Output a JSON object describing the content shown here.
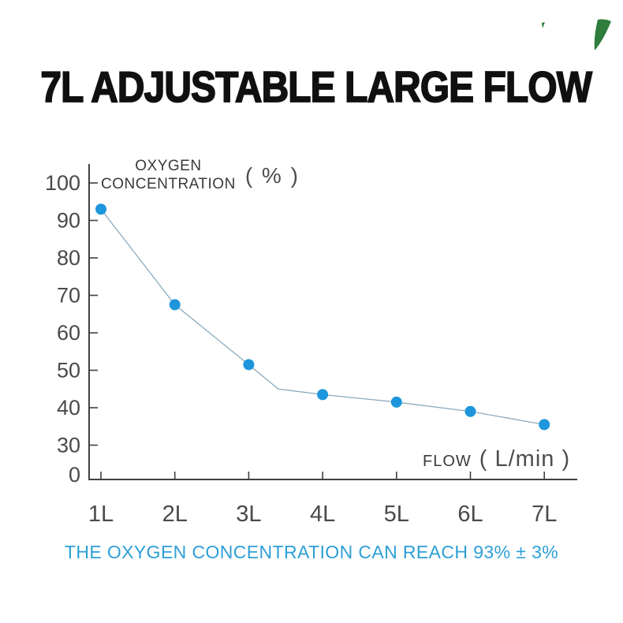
{
  "title": "7L ADJUSTABLE LARGE FLOW",
  "footer": {
    "text": "THE OXYGEN CONCENTRATION CAN REACH 93% ± 3%",
    "color": "#2D9FD6"
  },
  "decoration": {
    "leaf_icon_color": "#2E7D3C"
  },
  "chart_data": {
    "type": "line",
    "title": "",
    "x_axis": {
      "label": "FLOW",
      "unit": "( L/min )"
    },
    "y_axis": {
      "label_line1": "OXYGEN",
      "label_line2": "CONCENTRATION",
      "unit": "( % )",
      "ticks": [
        0,
        30,
        40,
        50,
        60,
        70,
        80,
        90,
        100
      ],
      "broken_axis_between": [
        0,
        30
      ],
      "top": 100
    },
    "categories": [
      "1L",
      "2L",
      "3L",
      "4L",
      "5L",
      "6L",
      "7L"
    ],
    "x": [
      1,
      2,
      3,
      4,
      5,
      6,
      7
    ],
    "series": [
      {
        "name": "Oxygen concentration (%)",
        "values": [
          93,
          67.5,
          51.5,
          43.5,
          41.5,
          39,
          35.5
        ]
      }
    ],
    "line_bend_vertex": {
      "x": 3.4,
      "value": 45
    },
    "grid": false,
    "legend": "none",
    "colors": {
      "marker": "#1E96DC",
      "line": "#8AABBD",
      "axis": "#404040",
      "tick_label": "#4A4A4A"
    }
  }
}
